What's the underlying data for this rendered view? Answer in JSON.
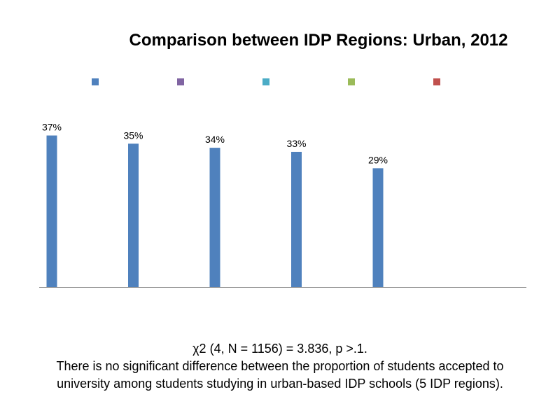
{
  "chart_data": {
    "type": "bar",
    "title": "Comparison between IDP Regions: Urban, 2012",
    "categories": [
      "",
      "",
      "",
      "",
      ""
    ],
    "values": [
      37,
      35,
      34,
      33,
      29
    ],
    "data_labels": [
      "37%",
      "35%",
      "34%",
      "33%",
      "29%"
    ],
    "bar_color": "#4F81BD",
    "legend": {
      "placement": "top",
      "colors": [
        "#4F81BD",
        "#8064A2",
        "#4BACC6",
        "#9BBB59",
        "#C0504D"
      ]
    },
    "ylim": [
      0,
      40
    ],
    "grid": false
  },
  "caption": {
    "line1": "χ2 (4, N = 1156) = 3.836, p >.1.",
    "line2": "There is no significant difference between the proportion of students accepted to university among students studying in urban-based IDP schools (5 IDP regions)."
  }
}
